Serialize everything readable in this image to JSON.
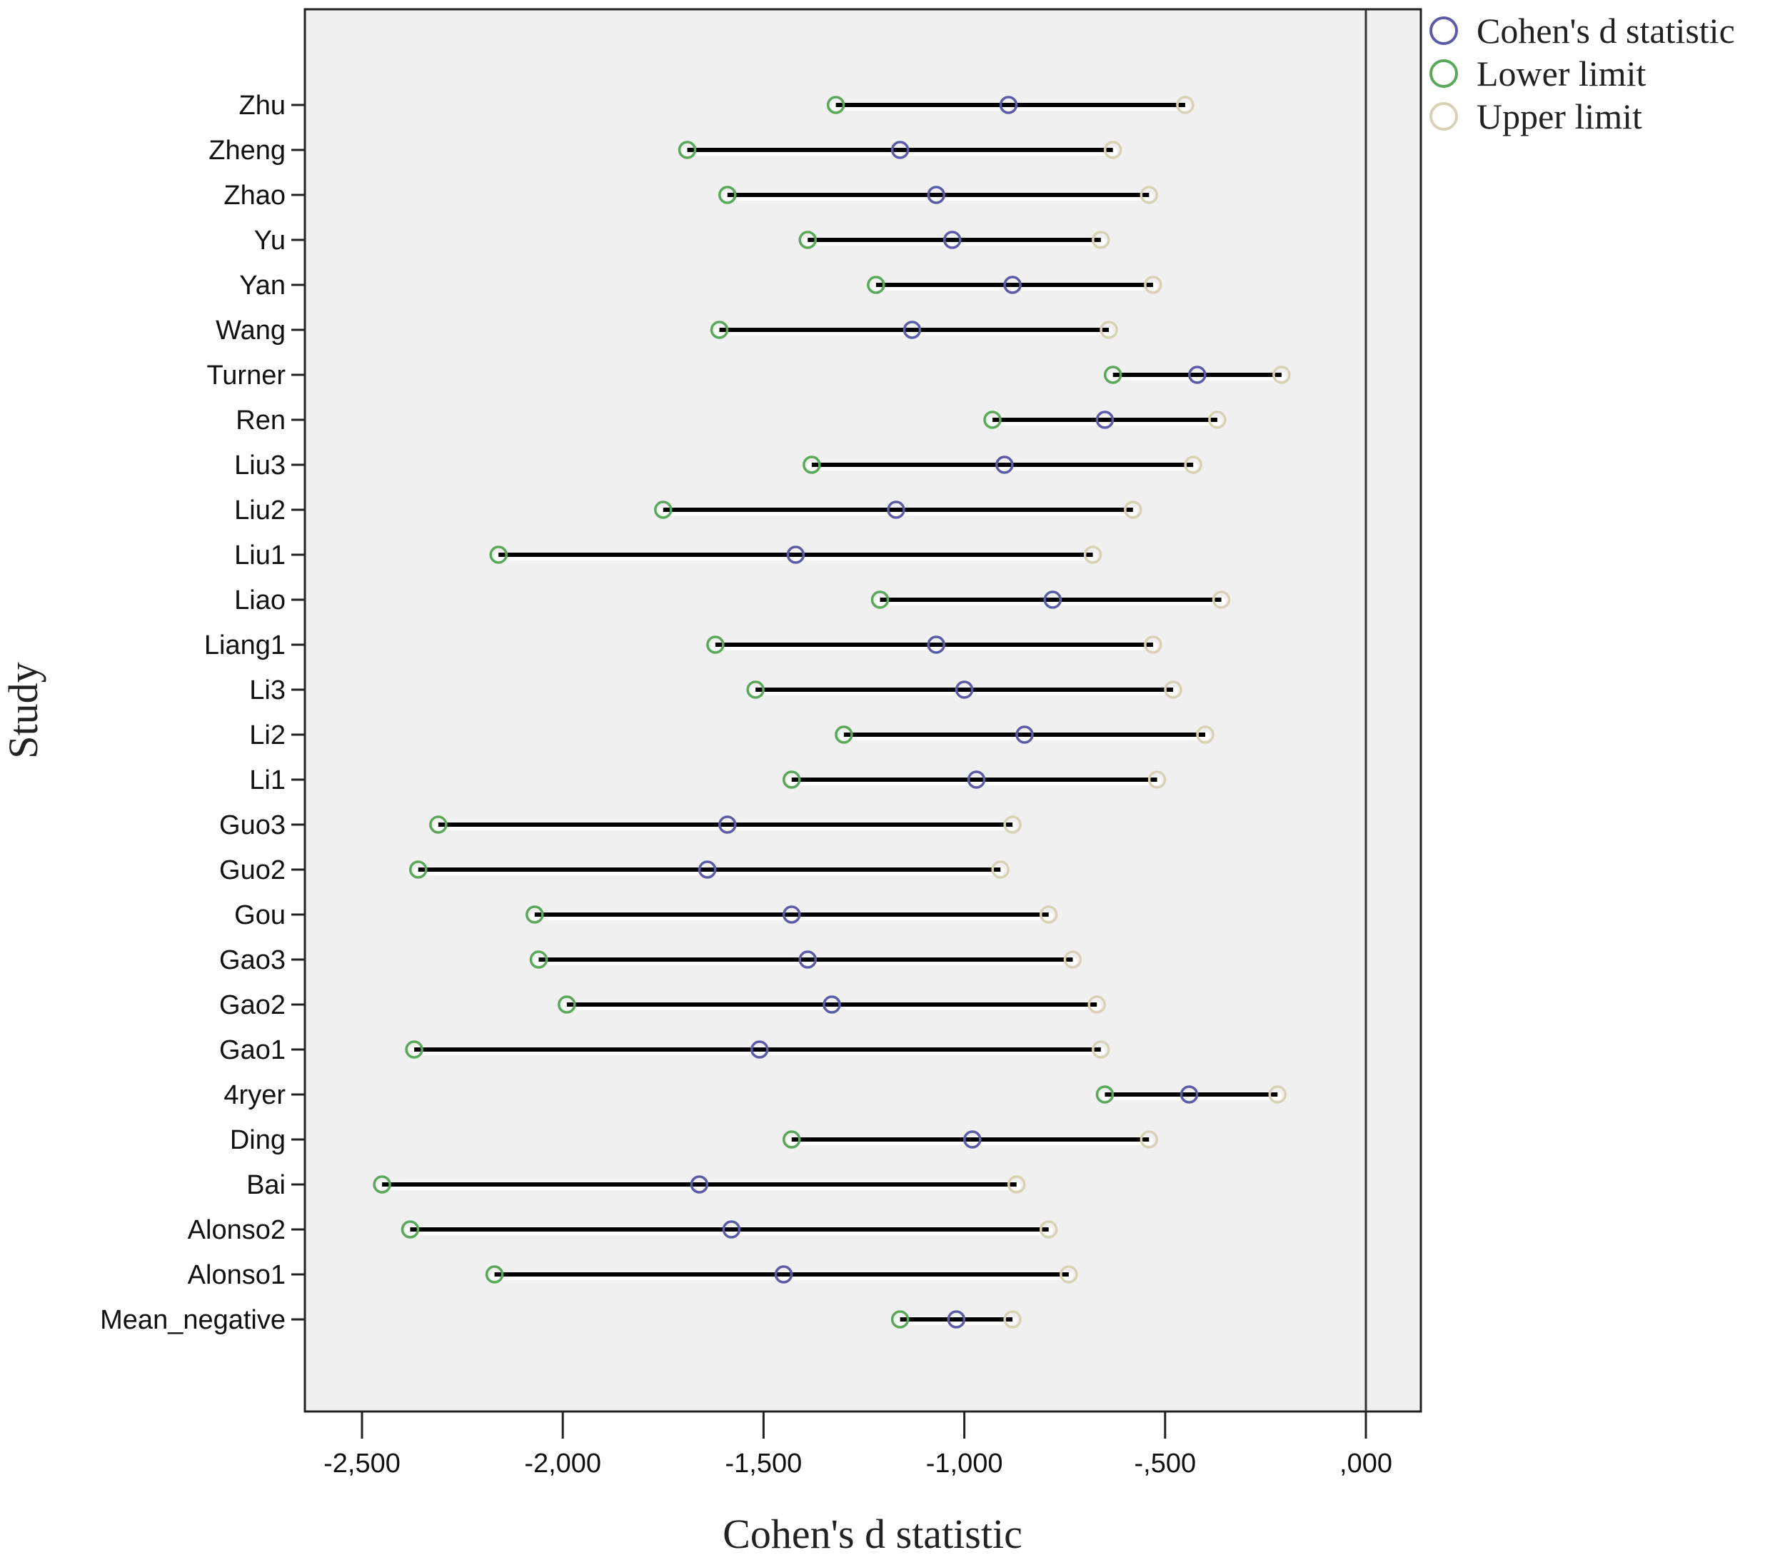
{
  "chart_data": {
    "type": "scatter",
    "subtype": "forest-plot",
    "title": "",
    "xlabel": "Cohen's d statistic",
    "ylabel": "Study",
    "xlim": [
      -2.6,
      0.25
    ],
    "x_ticks": [
      -2.5,
      -2.0,
      -1.5,
      -1.0,
      -0.5,
      0.0
    ],
    "x_tick_labels": [
      "-2,500",
      "-2,000",
      "-1,500",
      "-1,000",
      "-,500",
      ",000"
    ],
    "reference_line_x": 0.0,
    "grid": false,
    "legend_position": "top-right-outside",
    "legend": [
      {
        "name": "Cohen's d statistic",
        "color": "#5b5ba8"
      },
      {
        "name": "Lower limit",
        "color": "#5aa85a"
      },
      {
        "name": "Upper limit",
        "color": "#d8d2b4"
      }
    ],
    "categories": [
      "Zhu",
      "Zheng",
      "Zhao",
      "Yu",
      "Yan",
      "Wang",
      "Turner",
      "Ren",
      "Liu3",
      "Liu2",
      "Liu1",
      "Liao",
      "Liang1",
      "Li3",
      "Li2",
      "Li1",
      "Guo3",
      "Guo2",
      "Gou",
      "Gao3",
      "Gao2",
      "Gao1",
      "4ryer",
      "Ding",
      "Bai",
      "Alonso2",
      "Alonso1",
      "Mean_negative"
    ],
    "series": [
      {
        "name": "Cohen's d statistic",
        "values": [
          -0.89,
          -1.16,
          -1.07,
          -1.03,
          -0.88,
          -1.13,
          -0.42,
          -0.65,
          -0.9,
          -1.17,
          -1.42,
          -0.78,
          -1.07,
          -1.0,
          -0.85,
          -0.97,
          -1.59,
          -1.64,
          -1.43,
          -1.39,
          -1.33,
          -1.51,
          -0.44,
          -0.98,
          -1.66,
          -1.58,
          -1.45,
          -1.02
        ]
      },
      {
        "name": "Lower limit",
        "values": [
          -1.32,
          -1.69,
          -1.59,
          -1.39,
          -1.22,
          -1.61,
          -0.63,
          -0.93,
          -1.38,
          -1.75,
          -2.16,
          -1.21,
          -1.62,
          -1.52,
          -1.3,
          -1.43,
          -2.31,
          -2.36,
          -2.07,
          -2.06,
          -1.99,
          -2.37,
          -0.65,
          -1.43,
          -2.45,
          -2.38,
          -2.17,
          -1.16
        ]
      },
      {
        "name": "Upper limit",
        "values": [
          -0.45,
          -0.63,
          -0.54,
          -0.66,
          -0.53,
          -0.64,
          -0.21,
          -0.37,
          -0.43,
          -0.58,
          -0.68,
          -0.36,
          -0.53,
          -0.48,
          -0.4,
          -0.52,
          -0.88,
          -0.91,
          -0.79,
          -0.73,
          -0.67,
          -0.66,
          -0.22,
          -0.54,
          -0.87,
          -0.79,
          -0.74,
          -0.88
        ]
      }
    ]
  },
  "colors": {
    "plot_bg": "#f0f0f0",
    "ci_line": "#000000",
    "d_marker": "#5b5ba8",
    "lower_marker": "#5aa85a",
    "upper_marker": "#d8d2b4"
  }
}
